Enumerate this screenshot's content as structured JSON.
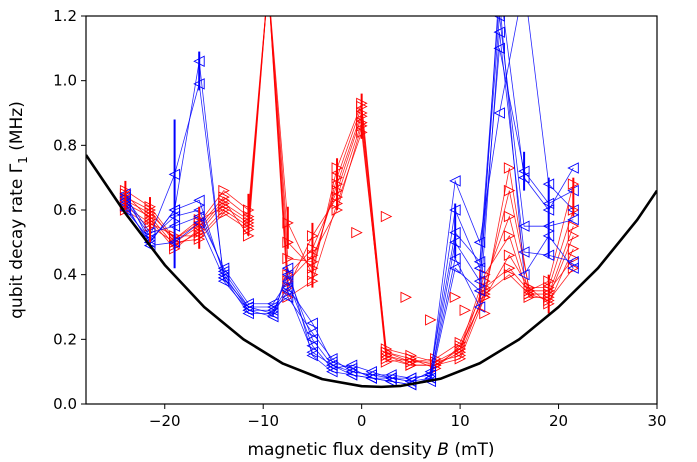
{
  "chart_data": {
    "type": "line",
    "xlabel": "magnetic flux density B (mT)",
    "xlabel_parts": {
      "before": "magnetic flux density ",
      "var": "B",
      "after": " (mT)"
    },
    "ylabel": "qubit decay rate Γ₁ (MHz)",
    "ylabel_parts": {
      "before": "qubit decay rate Γ",
      "sub": "1",
      "after": " (MHz)"
    },
    "xlim": [
      -28,
      30
    ],
    "ylim": [
      0,
      1.2
    ],
    "x_ticks": [
      -20,
      -10,
      0,
      10,
      20,
      30
    ],
    "x_tick_labels": [
      "−20",
      "−10",
      "0",
      "10",
      "20",
      "30"
    ],
    "y_ticks": [
      0.0,
      0.2,
      0.4,
      0.6,
      0.8,
      1.0,
      1.2
    ],
    "y_tick_labels": [
      "0.0",
      "0.2",
      "0.4",
      "0.6",
      "0.8",
      "1.0",
      "1.2"
    ],
    "grid": false,
    "colors": {
      "blue": "#0000ff",
      "red": "#ff0000",
      "bound": "#000000"
    },
    "bound_curve": {
      "name": "",
      "color": "#000000",
      "x": [
        -28,
        -24,
        -20,
        -16,
        -12,
        -8,
        -4,
        0,
        2,
        4,
        8,
        12,
        16,
        20,
        24,
        28,
        30
      ],
      "y": [
        0.77,
        0.59,
        0.43,
        0.3,
        0.2,
        0.125,
        0.077,
        0.055,
        0.053,
        0.056,
        0.078,
        0.126,
        0.2,
        0.3,
        0.42,
        0.57,
        0.66
      ]
    },
    "series_blue": [
      {
        "name": "",
        "color": "#0000ff",
        "marker": "left",
        "x": [
          -24,
          -21.5,
          -19,
          -16.5,
          -14,
          -11.5,
          -9,
          -7.5,
          -5,
          -3,
          -1,
          1,
          3,
          5,
          7,
          9.5,
          12,
          14,
          16.5,
          19,
          21.5
        ],
        "y": [
          0.65,
          0.5,
          0.6,
          1.06,
          0.38,
          0.29,
          0.27,
          0.42,
          0.15,
          0.1,
          0.09,
          0.08,
          0.07,
          0.06,
          0.07,
          0.42,
          0.35,
          1.3,
          0.7,
          0.6,
          0.73
        ]
      },
      {
        "name": "",
        "color": "#0000ff",
        "marker": "left",
        "x": [
          -24,
          -21.5,
          -19,
          -16.5,
          -14,
          -11.5,
          -9,
          -7.5,
          -5,
          -3,
          -1,
          1,
          3,
          5,
          7,
          9.5,
          12,
          14,
          16.5,
          19,
          21.5
        ],
        "y": [
          0.63,
          0.52,
          0.71,
          0.99,
          0.39,
          0.3,
          0.28,
          0.4,
          0.2,
          0.12,
          0.1,
          0.09,
          0.08,
          0.07,
          0.08,
          0.5,
          0.38,
          1.1,
          0.72,
          0.62,
          0.66
        ]
      },
      {
        "name": "",
        "color": "#0000ff",
        "marker": "left",
        "x": [
          -24,
          -21.5,
          -19,
          -16.5,
          -14,
          -11.5,
          -9,
          -7.5,
          -5,
          -3,
          -1,
          1,
          3,
          5,
          7,
          9.5,
          12,
          14,
          16.5,
          19,
          21.5
        ],
        "y": [
          0.61,
          0.5,
          0.6,
          0.63,
          0.4,
          0.29,
          0.29,
          0.36,
          0.25,
          0.13,
          0.11,
          0.08,
          0.08,
          0.08,
          0.09,
          0.69,
          0.5,
          0.9,
          1.3,
          0.68,
          0.6
        ]
      },
      {
        "name": "",
        "color": "#0000ff",
        "marker": "left",
        "x": [
          -24,
          -21.5,
          -19,
          -16.5,
          -14,
          -11.5,
          -9,
          -7.5,
          -5,
          -3,
          -1,
          1,
          3,
          5,
          7,
          9.5,
          12,
          14,
          16.5,
          19,
          21.5
        ],
        "y": [
          0.6,
          0.51,
          0.58,
          0.6,
          0.41,
          0.3,
          0.3,
          0.33,
          0.22,
          0.14,
          0.1,
          0.09,
          0.09,
          0.08,
          0.09,
          0.6,
          0.42,
          1.2,
          0.55,
          0.55,
          0.57
        ]
      },
      {
        "name": "",
        "color": "#0000ff",
        "marker": "left",
        "x": [
          -24,
          -21.5,
          -19,
          -16.5,
          -14,
          -11.5,
          -9,
          -7.5,
          -5,
          -3,
          -1,
          1,
          3,
          5,
          7,
          9.5,
          12,
          14,
          16.5,
          19,
          21.5
        ],
        "y": [
          0.64,
          0.53,
          0.55,
          0.58,
          0.42,
          0.31,
          0.31,
          0.38,
          0.18,
          0.11,
          0.12,
          0.1,
          0.08,
          0.07,
          0.1,
          0.53,
          0.44,
          1.25,
          0.4,
          0.52,
          0.42
        ]
      },
      {
        "name": "",
        "color": "#0000ff",
        "marker": "left",
        "x": [
          -24,
          -21.5,
          -19,
          -16.5,
          -14,
          -11.5,
          -9,
          -7.5,
          -5,
          -3,
          -1,
          1,
          3,
          5,
          7,
          9.5,
          12,
          14,
          16.5,
          19,
          21.5
        ],
        "y": [
          0.62,
          0.49,
          0.5,
          0.56,
          0.39,
          0.28,
          0.28,
          0.35,
          0.16,
          0.12,
          0.09,
          0.08,
          0.07,
          0.06,
          0.08,
          0.45,
          0.3,
          1.15,
          0.47,
          0.46,
          0.44
        ]
      }
    ],
    "series_red": [
      {
        "name": "",
        "color": "#ff0000",
        "marker": "right",
        "x": [
          -24,
          -21.5,
          -19,
          -16.5,
          -14,
          -11.5,
          -9.5,
          -7.5,
          -5,
          -2.5,
          0,
          2.5,
          5,
          7.5,
          10,
          12.5,
          15,
          17,
          19,
          21.5
        ],
        "y": [
          0.66,
          0.61,
          0.51,
          0.56,
          0.66,
          0.6,
          1.3,
          0.56,
          0.4,
          0.73,
          0.93,
          0.16,
          0.14,
          0.12,
          0.14,
          0.33,
          0.73,
          0.35,
          0.38,
          0.68
        ]
      },
      {
        "name": "",
        "color": "#ff0000",
        "marker": "right",
        "x": [
          -24,
          -21.5,
          -19,
          -16.5,
          -14,
          -11.5,
          -9.5,
          -7.5,
          -5,
          -2.5,
          0,
          2.5,
          5,
          7.5,
          10,
          12.5,
          15,
          17,
          19,
          21.5
        ],
        "y": [
          0.64,
          0.6,
          0.5,
          0.55,
          0.64,
          0.58,
          1.3,
          0.5,
          0.42,
          0.7,
          0.92,
          0.15,
          0.13,
          0.13,
          0.15,
          0.35,
          0.66,
          0.36,
          0.36,
          0.6
        ]
      },
      {
        "name": "",
        "color": "#ff0000",
        "marker": "right",
        "x": [
          -24,
          -21.5,
          -19,
          -16.5,
          -14,
          -11.5,
          -9.5,
          -7.5,
          -5,
          -2.5,
          0,
          2.5,
          5,
          7.5,
          10,
          12.5,
          15,
          17,
          19,
          21.5
        ],
        "y": [
          0.62,
          0.58,
          0.49,
          0.53,
          0.62,
          0.57,
          1.3,
          0.45,
          0.44,
          0.68,
          0.9,
          0.14,
          0.12,
          0.12,
          0.16,
          0.38,
          0.58,
          0.34,
          0.34,
          0.55
        ]
      },
      {
        "name": "",
        "color": "#ff0000",
        "marker": "right",
        "x": [
          -24,
          -21.5,
          -19,
          -16.5,
          -14,
          -11.5,
          -9.5,
          -7.5,
          -5,
          -2.5,
          0,
          2.5,
          5,
          7.5,
          10,
          12.5,
          15,
          17,
          19,
          21.5
        ],
        "y": [
          0.61,
          0.56,
          0.52,
          0.52,
          0.6,
          0.55,
          1.3,
          0.4,
          0.48,
          0.66,
          0.89,
          0.17,
          0.15,
          0.13,
          0.17,
          0.4,
          0.52,
          0.33,
          0.33,
          0.52
        ]
      },
      {
        "name": "",
        "color": "#ff0000",
        "marker": "right",
        "x": [
          -24,
          -21.5,
          -19,
          -16.5,
          -14,
          -11.5,
          -9.5,
          -7.5,
          -5,
          -2.5,
          0,
          2.5,
          5,
          7.5,
          10,
          12.5,
          15,
          17,
          19,
          21.5
        ],
        "y": [
          0.6,
          0.55,
          0.5,
          0.51,
          0.59,
          0.54,
          1.3,
          0.36,
          0.52,
          0.64,
          0.87,
          0.13,
          0.14,
          0.11,
          0.18,
          0.33,
          0.46,
          0.36,
          0.31,
          0.48
        ]
      },
      {
        "name": "",
        "color": "#ff0000",
        "marker": "right",
        "x": [
          -24,
          -21.5,
          -19,
          -16.5,
          -14,
          -11.5,
          -9.5,
          -7.5,
          -5,
          -2.5,
          0,
          2.5,
          5,
          7.5,
          10,
          12.5,
          15,
          17,
          19,
          21.5
        ],
        "y": [
          0.65,
          0.57,
          0.48,
          0.54,
          0.63,
          0.52,
          1.3,
          0.33,
          0.38,
          0.62,
          0.84,
          0.16,
          0.13,
          0.14,
          0.19,
          0.36,
          0.42,
          0.35,
          0.35,
          0.45
        ]
      },
      {
        "name": "",
        "color": "#ff0000",
        "marker": "right",
        "x": [
          -24,
          -21.5,
          -19,
          -16.5,
          -14,
          -11.5,
          -9.5,
          -7.5,
          -5,
          -2.5,
          0,
          2.5,
          5,
          7.5,
          10,
          12.5,
          15,
          17,
          19,
          21.5
        ],
        "y": [
          0.63,
          0.59,
          0.51,
          0.57,
          0.61,
          0.56,
          1.3,
          0.38,
          0.46,
          0.6,
          0.86,
          0.15,
          0.12,
          0.12,
          0.17,
          0.34,
          0.4,
          0.34,
          0.32,
          0.42
        ]
      }
    ],
    "extra_points_red": {
      "x": [
        -0.5,
        2.5,
        4.5,
        7,
        9.5,
        10.5,
        12.5
      ],
      "y": [
        0.53,
        0.58,
        0.33,
        0.26,
        0.33,
        0.29,
        0.28
      ]
    },
    "error_bars_blue": [
      {
        "x": -19,
        "low": 0.42,
        "high": 0.88
      },
      {
        "x": -21.5,
        "low": 0.49,
        "high": 0.62
      },
      {
        "x": -16.5,
        "low": 0.97,
        "high": 1.09
      },
      {
        "x": 9.5,
        "low": 0.45,
        "high": 0.62
      },
      {
        "x": 19,
        "low": 0.45,
        "high": 0.7
      },
      {
        "x": 16.5,
        "low": 0.66,
        "high": 0.78
      }
    ],
    "error_bars_red": [
      {
        "x": -24,
        "low": 0.6,
        "high": 0.69
      },
      {
        "x": -21.5,
        "low": 0.5,
        "high": 0.64
      },
      {
        "x": -16.5,
        "low": 0.48,
        "high": 0.61
      },
      {
        "x": -11.5,
        "low": 0.52,
        "high": 0.65
      },
      {
        "x": -7.5,
        "low": 0.48,
        "high": 0.61
      },
      {
        "x": -5,
        "low": 0.36,
        "high": 0.56
      },
      {
        "x": -2.5,
        "low": 0.6,
        "high": 0.76
      },
      {
        "x": 0,
        "low": 0.82,
        "high": 0.96
      },
      {
        "x": 19,
        "low": 0.28,
        "high": 0.4
      },
      {
        "x": 21.5,
        "low": 0.58,
        "high": 0.7
      }
    ]
  }
}
